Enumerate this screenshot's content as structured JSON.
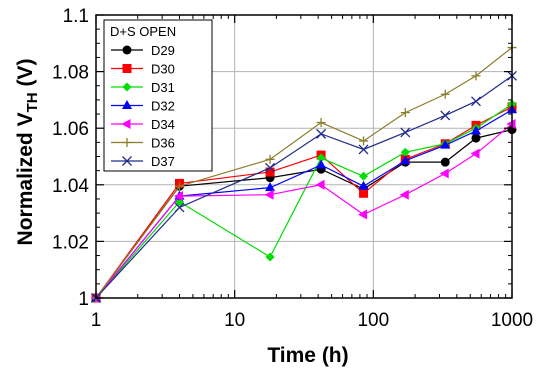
{
  "chart_data": {
    "type": "line",
    "xscale": "log",
    "xlim": [
      1,
      1000
    ],
    "ylim": [
      1,
      1.1
    ],
    "grid": true,
    "xlabel": "Time (h)",
    "ylabel_main": "Normalized V",
    "ylabel_sub": "TH",
    "ylabel_unit": " (V)",
    "legend_title": "D+S OPEN",
    "legend_position": "top-left",
    "xticks": [
      {
        "value": 1,
        "label": "1"
      },
      {
        "value": 10,
        "label": "10"
      },
      {
        "value": 100,
        "label": "100"
      },
      {
        "value": 1000,
        "label": "1000"
      }
    ],
    "yticks": [
      {
        "value": 1,
        "label": "1"
      },
      {
        "value": 1.02,
        "label": "1.02"
      },
      {
        "value": 1.04,
        "label": "1.04"
      },
      {
        "value": 1.06,
        "label": "1.06"
      },
      {
        "value": 1.08,
        "label": "1.08"
      },
      {
        "value": 1.1,
        "label": "1.1"
      }
    ],
    "x": [
      1,
      4,
      18,
      42,
      85,
      170,
      330,
      550,
      1000
    ],
    "series": [
      {
        "name": "D29",
        "color": "#000000",
        "marker": "circle",
        "values": [
          1.0,
          1.0395,
          1.0425,
          1.0455,
          1.0385,
          1.048,
          1.048,
          1.0565,
          1.0595
        ]
      },
      {
        "name": "D30",
        "color": "#ff0000",
        "marker": "square",
        "values": [
          1.0,
          1.0405,
          1.0445,
          1.0505,
          1.037,
          1.049,
          1.0545,
          1.061,
          1.0675
        ]
      },
      {
        "name": "D31",
        "color": "#00dd00",
        "marker": "diamond",
        "values": [
          1.0,
          1.034,
          1.0145,
          1.0495,
          1.043,
          1.0515,
          1.0545,
          1.06,
          1.0685
        ]
      },
      {
        "name": "D32",
        "color": "#0000ff",
        "marker": "triangle-up",
        "values": [
          1.0,
          1.036,
          1.039,
          1.047,
          1.0395,
          1.0485,
          1.054,
          1.059,
          1.0665
        ]
      },
      {
        "name": "D34",
        "color": "#ff00ff",
        "marker": "triangle-left",
        "values": [
          1.0,
          1.036,
          1.0365,
          1.04,
          1.0295,
          1.0365,
          1.044,
          1.051,
          1.0615
        ]
      },
      {
        "name": "D36",
        "color": "#8b7d2b",
        "marker": "plus",
        "values": [
          1.0,
          1.0395,
          1.049,
          1.062,
          1.0555,
          1.0655,
          1.072,
          1.0785,
          1.0885
        ]
      },
      {
        "name": "D37",
        "color": "#1f2a8c",
        "marker": "x",
        "values": [
          1.0,
          1.032,
          1.046,
          1.058,
          1.0525,
          1.0585,
          1.0645,
          1.0695,
          1.0785
        ]
      }
    ]
  }
}
